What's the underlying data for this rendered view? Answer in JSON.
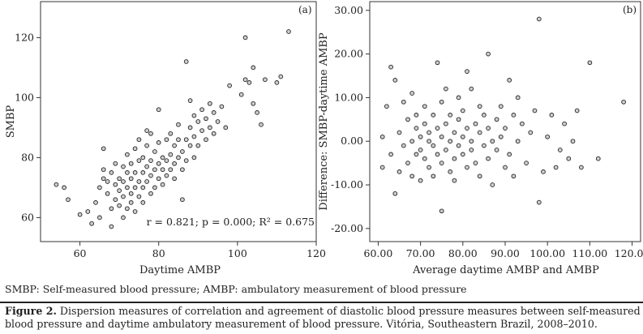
{
  "footnote": "SMBP: Self-measured blood pressure; AMBP: ambulatory measurement of blood pressure",
  "caption": {
    "label": "Figure 2.",
    "text": " Dispersion measures of correlation and agreement of diastolic blood pressure measures between self-measured blood pressure and daytime ambulatory measurement of blood pressure. Vitória, Southeastern Brazil, 2008–2010."
  },
  "chart_data": [
    {
      "panel": "(a)",
      "type": "scatter",
      "xlabel": "Daytime AMBP",
      "ylabel": "SMBP",
      "xlim": [
        50,
        120
      ],
      "ylim": [
        52,
        132
      ],
      "xticks": [
        60,
        80,
        100,
        120
      ],
      "yticks": [
        60,
        80,
        100,
        120
      ],
      "annotation": "r = 0.821; p = 0.000; R² = 0.675",
      "grid": false,
      "points": [
        [
          54,
          71
        ],
        [
          56,
          70
        ],
        [
          57,
          66
        ],
        [
          60,
          61
        ],
        [
          62,
          62
        ],
        [
          63,
          58
        ],
        [
          64,
          65
        ],
        [
          65,
          60
        ],
        [
          65,
          70
        ],
        [
          66,
          73
        ],
        [
          66,
          76
        ],
        [
          66,
          83
        ],
        [
          67,
          68
        ],
        [
          67,
          72
        ],
        [
          68,
          57
        ],
        [
          68,
          63
        ],
        [
          68,
          75
        ],
        [
          69,
          66
        ],
        [
          69,
          71
        ],
        [
          69,
          78
        ],
        [
          70,
          64
        ],
        [
          70,
          69
        ],
        [
          70,
          73
        ],
        [
          71,
          60
        ],
        [
          71,
          67
        ],
        [
          71,
          72
        ],
        [
          71,
          77
        ],
        [
          72,
          63
        ],
        [
          72,
          70
        ],
        [
          72,
          75
        ],
        [
          72,
          81
        ],
        [
          73,
          65
        ],
        [
          73,
          68
        ],
        [
          73,
          73
        ],
        [
          73,
          78
        ],
        [
          74,
          62
        ],
        [
          74,
          70
        ],
        [
          74,
          75
        ],
        [
          74,
          83
        ],
        [
          75,
          67
        ],
        [
          75,
          72
        ],
        [
          75,
          79
        ],
        [
          75,
          86
        ],
        [
          76,
          65
        ],
        [
          76,
          70
        ],
        [
          76,
          75
        ],
        [
          76,
          80
        ],
        [
          77,
          72
        ],
        [
          77,
          77
        ],
        [
          77,
          84
        ],
        [
          77,
          89
        ],
        [
          78,
          68
        ],
        [
          78,
          74
        ],
        [
          78,
          79
        ],
        [
          78,
          88
        ],
        [
          79,
          70
        ],
        [
          79,
          76
        ],
        [
          79,
          82
        ],
        [
          80,
          73
        ],
        [
          80,
          78
        ],
        [
          80,
          85
        ],
        [
          80,
          96
        ],
        [
          81,
          71
        ],
        [
          81,
          76
        ],
        [
          81,
          80
        ],
        [
          82,
          74
        ],
        [
          82,
          79
        ],
        [
          82,
          86
        ],
        [
          83,
          76
        ],
        [
          83,
          81
        ],
        [
          83,
          88
        ],
        [
          84,
          73
        ],
        [
          84,
          78
        ],
        [
          84,
          84
        ],
        [
          85,
          80
        ],
        [
          85,
          86
        ],
        [
          85,
          91
        ],
        [
          86,
          66
        ],
        [
          86,
          76
        ],
        [
          86,
          82
        ],
        [
          87,
          79
        ],
        [
          87,
          86
        ],
        [
          87,
          112
        ],
        [
          88,
          84
        ],
        [
          88,
          90
        ],
        [
          88,
          99
        ],
        [
          89,
          80
        ],
        [
          89,
          87
        ],
        [
          89,
          94
        ],
        [
          90,
          84
        ],
        [
          90,
          92
        ],
        [
          91,
          89
        ],
        [
          91,
          96
        ],
        [
          92,
          86
        ],
        [
          92,
          93
        ],
        [
          93,
          90
        ],
        [
          93,
          98
        ],
        [
          94,
          88
        ],
        [
          94,
          95
        ],
        [
          95,
          92
        ],
        [
          96,
          97
        ],
        [
          97,
          90
        ],
        [
          98,
          104
        ],
        [
          101,
          101
        ],
        [
          102,
          106
        ],
        [
          102,
          120
        ],
        [
          103,
          105
        ],
        [
          104,
          110
        ],
        [
          104,
          98
        ],
        [
          105,
          95
        ],
        [
          106,
          91
        ],
        [
          107,
          106
        ],
        [
          110,
          105
        ],
        [
          111,
          107
        ],
        [
          113,
          122
        ]
      ]
    },
    {
      "panel": "(b)",
      "type": "scatter",
      "xlabel": "Average daytime AMBP and AMBP",
      "ylabel": "Difference: SMBP-daytime AMBP",
      "xlim": [
        58,
        122
      ],
      "ylim": [
        -23,
        32
      ],
      "xticks": [
        "60.00",
        "70.00",
        "80.00",
        "90.00",
        "100.00",
        "110.00",
        "120.00"
      ],
      "yticks": [
        "30.00",
        "20.00",
        "10.00",
        "0.00",
        "-10.00",
        "-20.00"
      ],
      "grid": false,
      "points": [
        [
          61,
          1
        ],
        [
          61,
          -6
        ],
        [
          62,
          8
        ],
        [
          63,
          17
        ],
        [
          63,
          -3
        ],
        [
          64,
          14
        ],
        [
          64,
          -12
        ],
        [
          65,
          2
        ],
        [
          65,
          -7
        ],
        [
          66,
          9
        ],
        [
          66,
          -1
        ],
        [
          67,
          5
        ],
        [
          67,
          -5
        ],
        [
          68,
          11
        ],
        [
          68,
          0
        ],
        [
          68,
          -8
        ],
        [
          69,
          3
        ],
        [
          69,
          -3
        ],
        [
          69,
          6
        ],
        [
          70,
          -2
        ],
        [
          70,
          1
        ],
        [
          70,
          -9
        ],
        [
          71,
          4
        ],
        [
          71,
          -4
        ],
        [
          71,
          8
        ],
        [
          72,
          0
        ],
        [
          72,
          -6
        ],
        [
          72,
          2
        ],
        [
          73,
          6
        ],
        [
          73,
          -1
        ],
        [
          73,
          -8
        ],
        [
          74,
          3
        ],
        [
          74,
          -3
        ],
        [
          74,
          18
        ],
        [
          75,
          1
        ],
        [
          75,
          -5
        ],
        [
          75,
          -16
        ],
        [
          75,
          9
        ],
        [
          76,
          -2
        ],
        [
          76,
          4
        ],
        [
          76,
          12
        ],
        [
          77,
          0
        ],
        [
          77,
          -7
        ],
        [
          77,
          6
        ],
        [
          78,
          2
        ],
        [
          78,
          -4
        ],
        [
          78,
          -9
        ],
        [
          79,
          5
        ],
        [
          79,
          -1
        ],
        [
          79,
          10
        ],
        [
          80,
          1
        ],
        [
          80,
          -3
        ],
        [
          80,
          7
        ],
        [
          81,
          -6
        ],
        [
          81,
          3
        ],
        [
          81,
          16
        ],
        [
          82,
          0
        ],
        [
          82,
          -2
        ],
        [
          82,
          12
        ],
        [
          83,
          4
        ],
        [
          83,
          -5
        ],
        [
          84,
          2
        ],
        [
          84,
          8
        ],
        [
          84,
          -8
        ],
        [
          85,
          -1
        ],
        [
          85,
          6
        ],
        [
          86,
          3
        ],
        [
          86,
          20
        ],
        [
          86,
          -4
        ],
        [
          87,
          0
        ],
        [
          87,
          -10
        ],
        [
          88,
          5
        ],
        [
          88,
          -2
        ],
        [
          89,
          8
        ],
        [
          89,
          1
        ],
        [
          90,
          -6
        ],
        [
          90,
          3
        ],
        [
          91,
          14
        ],
        [
          91,
          -3
        ],
        [
          92,
          6
        ],
        [
          92,
          -8
        ],
        [
          93,
          0
        ],
        [
          93,
          10
        ],
        [
          94,
          4
        ],
        [
          95,
          -5
        ],
        [
          96,
          2
        ],
        [
          97,
          7
        ],
        [
          98,
          28
        ],
        [
          98,
          -14
        ],
        [
          99,
          -7
        ],
        [
          100,
          1
        ],
        [
          101,
          6
        ],
        [
          102,
          -6
        ],
        [
          103,
          -2
        ],
        [
          104,
          4
        ],
        [
          105,
          -4
        ],
        [
          106,
          0
        ],
        [
          107,
          7
        ],
        [
          108,
          -6
        ],
        [
          110,
          18
        ],
        [
          112,
          -4
        ],
        [
          118,
          9
        ]
      ]
    }
  ]
}
